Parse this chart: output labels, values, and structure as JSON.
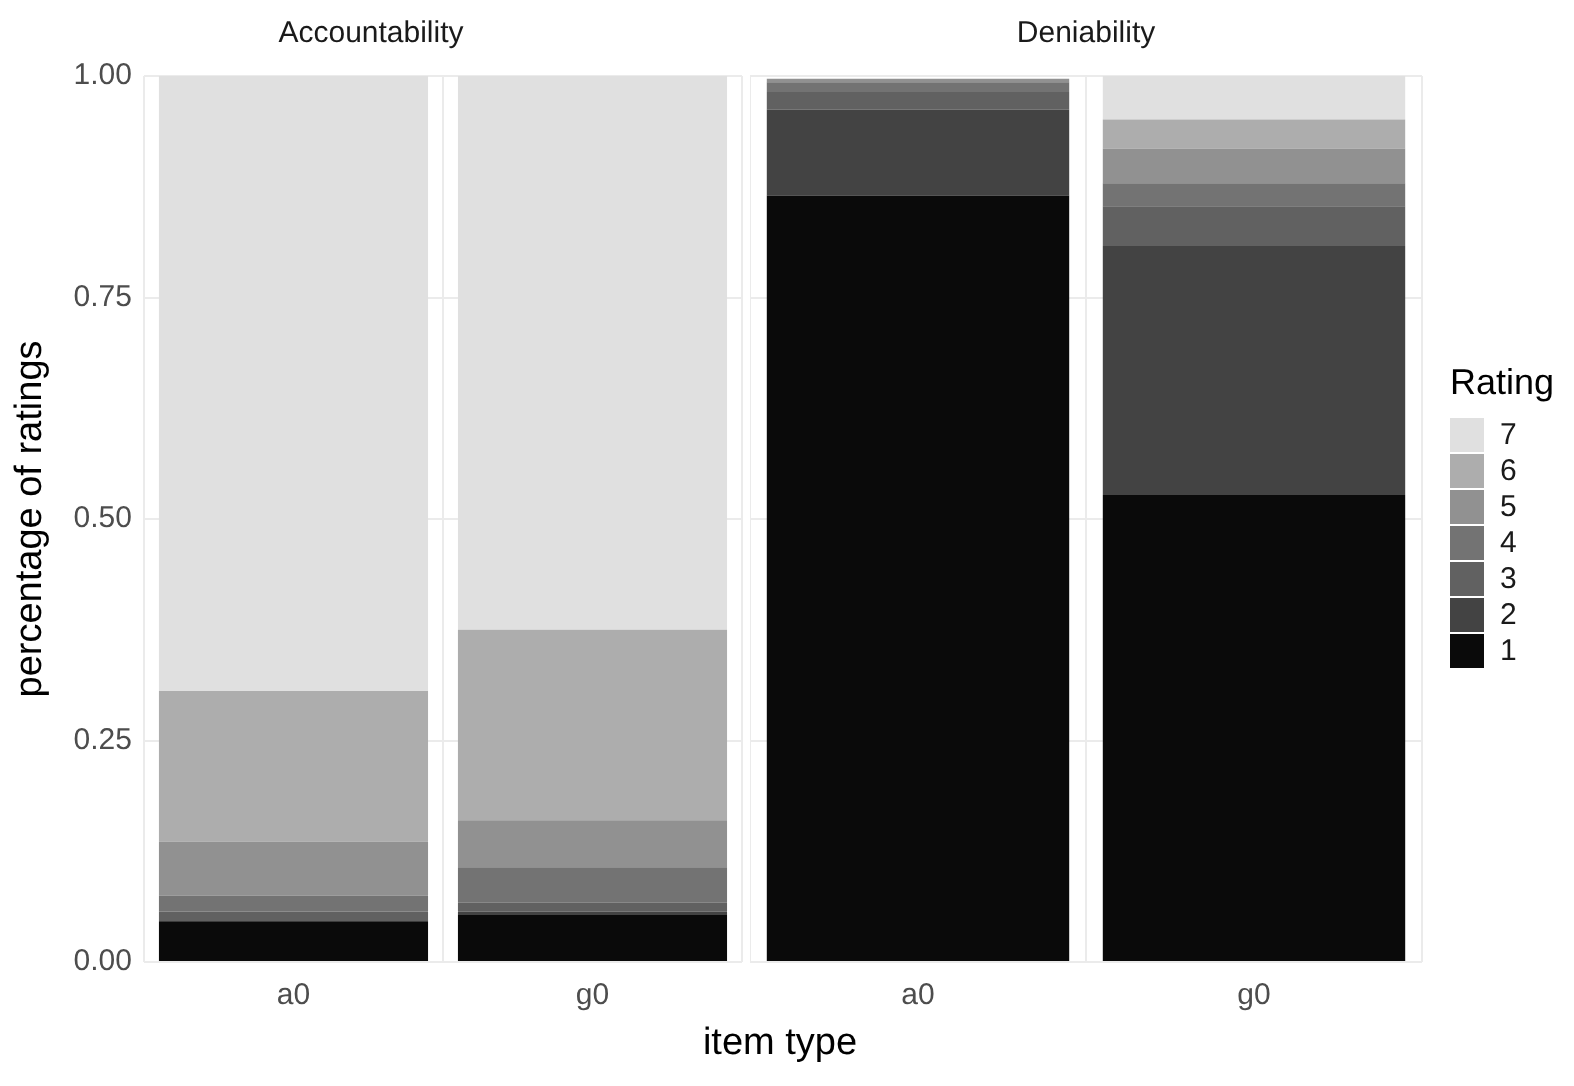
{
  "chart_data": [
    {
      "type": "bar",
      "title": "Accountability",
      "xlabel": "item type",
      "ylabel": "percentage of ratings",
      "categories": [
        "a0",
        "g0"
      ],
      "stacked": true,
      "ylim": [
        0,
        1
      ],
      "yticks": [
        {
          "value": 0,
          "label": "0.00"
        },
        {
          "value": 0.25,
          "label": "0.25"
        },
        {
          "value": 0.5,
          "label": "0.50"
        },
        {
          "value": 0.75,
          "label": "0.75"
        },
        {
          "value": 1,
          "label": "1.00"
        }
      ],
      "grid": true,
      "legend": false,
      "series": [
        {
          "color": "#0a0a0a",
          "values": [
            0.046,
            0.053
          ]
        },
        {
          "color": "#434343",
          "values": [
            0,
            0.004
          ]
        },
        {
          "color": "#616161",
          "values": [
            0.011,
            0.01
          ]
        },
        {
          "color": "#737373",
          "values": [
            0.018,
            0.04
          ]
        },
        {
          "color": "#919191",
          "values": [
            0.061,
            0.053
          ]
        },
        {
          "color": "#adadad",
          "values": [
            0.17,
            0.215
          ]
        },
        {
          "color": "#e0e0e0",
          "values": [
            0.694,
            0.625
          ]
        }
      ]
    },
    {
      "type": "bar",
      "title": "Deniability",
      "categories": [
        "a0",
        "g0"
      ],
      "stacked": true,
      "ylim": [
        0,
        1
      ],
      "yticks": [
        0,
        0.25,
        0.5,
        0.75,
        1
      ],
      "tick_labels": "x",
      "grid": true,
      "legend": "right",
      "legend_title": "Rating",
      "series": [
        {
          "name": "1",
          "color": "#0a0a0a",
          "values": [
            0.865,
            0.527
          ]
        },
        {
          "name": "2",
          "color": "#434343",
          "values": [
            0.097,
            0.281
          ]
        },
        {
          "name": "3",
          "color": "#616161",
          "values": [
            0.02,
            0.045
          ]
        },
        {
          "name": "4",
          "color": "#737373",
          "values": [
            0.011,
            0.026
          ]
        },
        {
          "name": "5",
          "color": "#919191",
          "values": [
            0.004,
            0.039
          ]
        },
        {
          "name": "6",
          "color": "#adadad",
          "values": [
            null,
            0.033
          ]
        },
        {
          "name": "7",
          "color": "#e0e0e0",
          "values": [
            0,
            0.049
          ]
        }
      ]
    }
  ]
}
